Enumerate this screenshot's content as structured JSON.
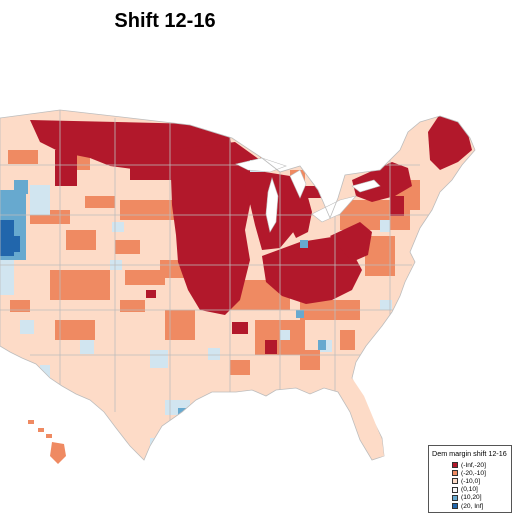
{
  "title": "Shift 12-16",
  "colors": {
    "dark_red": "#b2182b",
    "mid_red": "#ef8a62",
    "light_red": "#fddbc7",
    "light_blue": "#d1e5f0",
    "mid_blue": "#67a9cf",
    "dark_blue": "#2166ac",
    "state_border": "#bdbdbd",
    "background": "#ffffff"
  },
  "legend": {
    "title": "Dem margin shift 12-16",
    "placement": "bottom-right",
    "items": [
      {
        "label": "(-Inf,-20]",
        "color": "#b2182b"
      },
      {
        "label": "(-20,-10]",
        "color": "#ef8a62"
      },
      {
        "label": "(-10,0]",
        "color": "#fddbc7"
      },
      {
        "label": "(0,10]",
        "color": "#f7f7f7"
      },
      {
        "label": "(10,20]",
        "color": "#67a9cf"
      },
      {
        "label": "(20, Inf]",
        "color": "#2166ac"
      }
    ]
  }
}
